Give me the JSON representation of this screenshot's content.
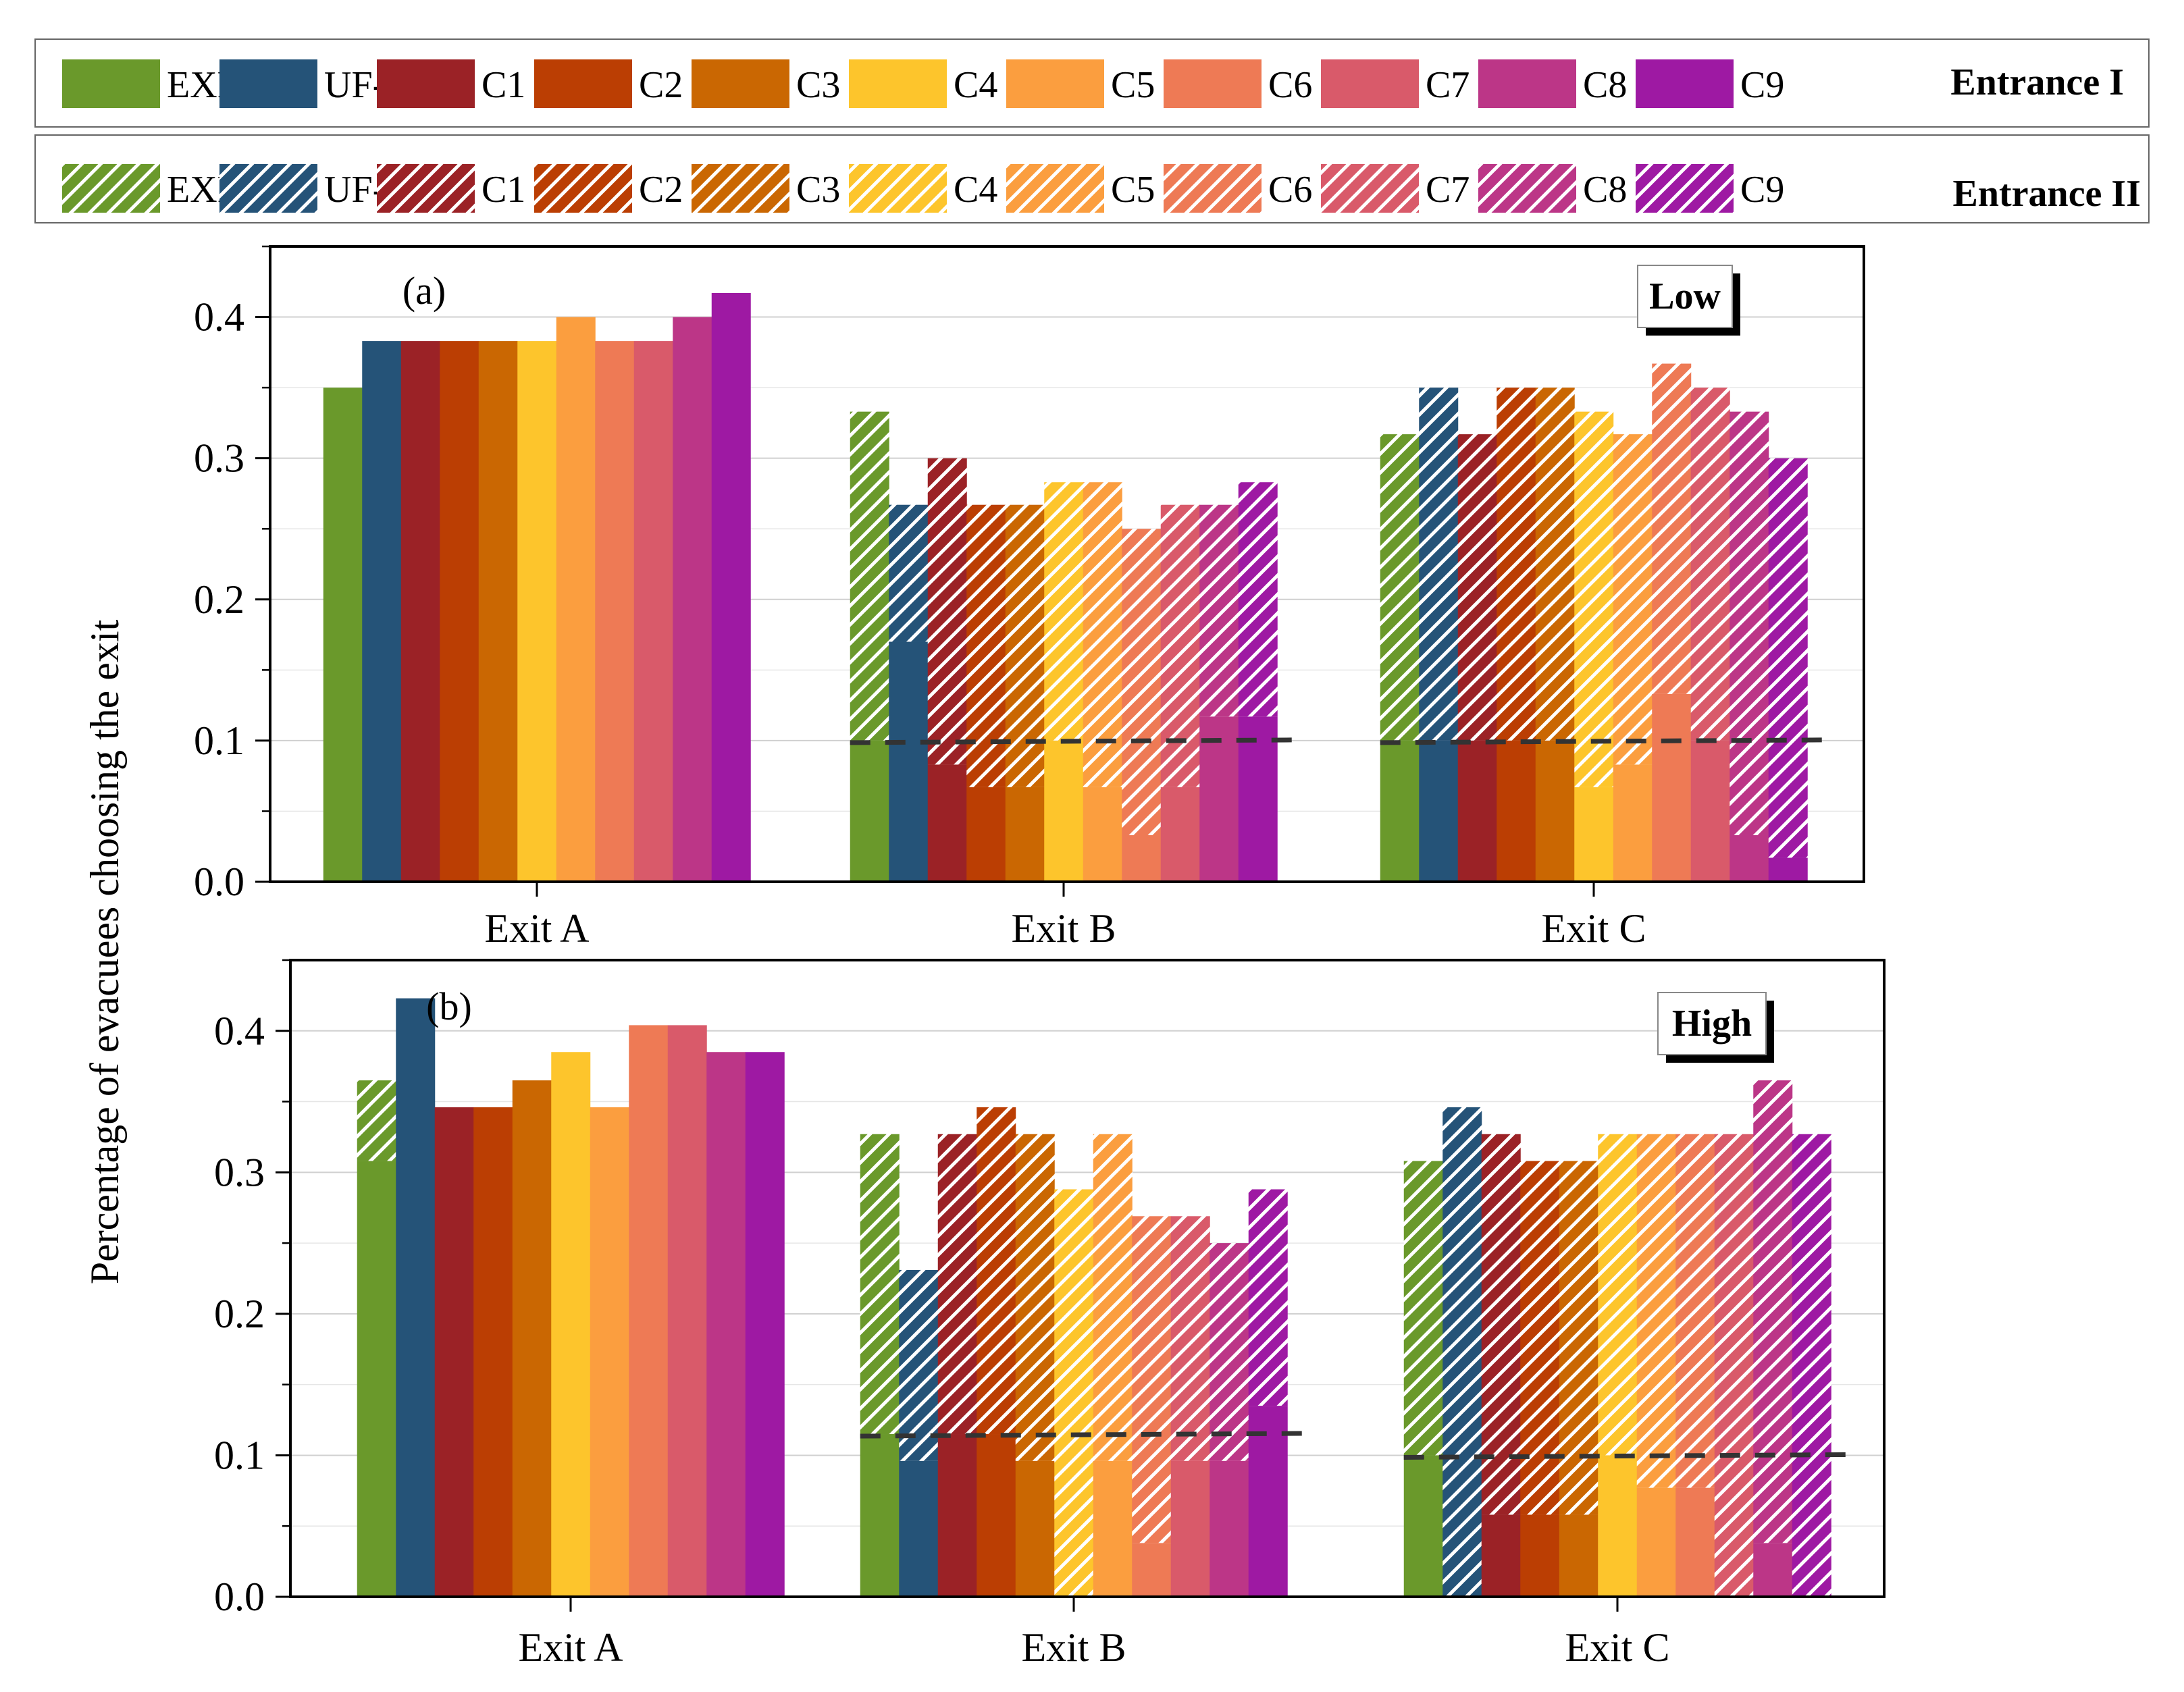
{
  "legend": {
    "rows": [
      {
        "label": "Entrance I",
        "hatched": false
      },
      {
        "label": "Entrance II",
        "hatched": true
      }
    ],
    "items": [
      {
        "name": "EXP",
        "color": "#6a992b"
      },
      {
        "name": "UF-SF",
        "color": "#255378"
      },
      {
        "name": "C1",
        "color": "#9b2226"
      },
      {
        "name": "C2",
        "color": "#bb3e03"
      },
      {
        "name": "C3",
        "color": "#ca6702"
      },
      {
        "name": "C4",
        "color": "#fdc52c"
      },
      {
        "name": "C5",
        "color": "#fb9e3f"
      },
      {
        "name": "C6",
        "color": "#ee7a55"
      },
      {
        "name": "C7",
        "color": "#d95a6a"
      },
      {
        "name": "C8",
        "color": "#bc3687"
      },
      {
        "name": "C9",
        "color": "#9e19a3"
      }
    ]
  },
  "y_axis_label": "Percentage of evacuees choosing the exit",
  "chart_data": [
    {
      "type": "bar",
      "panel_label": "(a)",
      "density_label": "Low",
      "categories": [
        "Exit A",
        "Exit B",
        "Exit C"
      ],
      "ylim": [
        0,
        0.45
      ],
      "yticks": [
        "0.0",
        "0.1",
        "0.2",
        "0.3",
        "0.4"
      ],
      "dashed_line": [
        0.1,
        0.1,
        0.1
      ],
      "series": [
        {
          "name": "EXP",
          "values": [
            0.35,
            0.333,
            0.317
          ],
          "split": [
            0.1,
            0.1
          ]
        },
        {
          "name": "UF-SF",
          "values": [
            0.383,
            0.267,
            0.35
          ],
          "split": [
            0.17,
            0.1
          ]
        },
        {
          "name": "C1",
          "values": [
            0.383,
            0.3,
            0.317
          ],
          "split": [
            0.083,
            0.1
          ]
        },
        {
          "name": "C2",
          "values": [
            0.383,
            0.267,
            0.35
          ],
          "split": [
            0.067,
            0.1
          ]
        },
        {
          "name": "C3",
          "values": [
            0.383,
            0.267,
            0.35
          ],
          "split": [
            0.067,
            0.1
          ]
        },
        {
          "name": "C4",
          "values": [
            0.383,
            0.283,
            0.333
          ],
          "split": [
            0.1,
            0.067
          ]
        },
        {
          "name": "C5",
          "values": [
            0.4,
            0.283,
            0.317
          ],
          "split": [
            0.067,
            0.083
          ]
        },
        {
          "name": "C6",
          "values": [
            0.383,
            0.25,
            0.367
          ],
          "split": [
            0.033,
            0.133
          ]
        },
        {
          "name": "C7",
          "values": [
            0.383,
            0.267,
            0.35
          ],
          "split": [
            0.067,
            0.1
          ]
        },
        {
          "name": "C8",
          "values": [
            0.4,
            0.267,
            0.333
          ],
          "split": [
            0.117,
            0.033
          ]
        },
        {
          "name": "C9",
          "values": [
            0.417,
            0.283,
            0.3
          ],
          "split": [
            0.117,
            0.017
          ]
        }
      ]
    },
    {
      "type": "bar",
      "panel_label": "(b)",
      "density_label": "High",
      "categories": [
        "Exit A",
        "Exit B",
        "Exit C"
      ],
      "ylim": [
        0,
        0.45
      ],
      "yticks": [
        "0.0",
        "0.1",
        "0.2",
        "0.3",
        "0.4"
      ],
      "dashed_line": [
        0.115,
        0.115,
        0.1
      ],
      "series": [
        {
          "name": "EXP",
          "values": [
            0.365,
            0.327,
            0.308
          ],
          "split": [
            0.115,
            0.1
          ],
          "a_split": 0.308
        },
        {
          "name": "UF-SF",
          "values": [
            0.423,
            0.231,
            0.346
          ],
          "split": [
            0.096,
            0.0
          ]
        },
        {
          "name": "C1",
          "values": [
            0.346,
            0.327,
            0.327
          ],
          "split": [
            0.115,
            0.058
          ]
        },
        {
          "name": "C2",
          "values": [
            0.346,
            0.346,
            0.308
          ],
          "split": [
            0.115,
            0.058
          ]
        },
        {
          "name": "C3",
          "values": [
            0.365,
            0.327,
            0.308
          ],
          "split": [
            0.096,
            0.058
          ]
        },
        {
          "name": "C4",
          "values": [
            0.385,
            0.288,
            0.327
          ],
          "split": [
            0.0,
            0.1
          ]
        },
        {
          "name": "C5",
          "values": [
            0.346,
            0.327,
            0.327
          ],
          "split": [
            0.096,
            0.077
          ]
        },
        {
          "name": "C6",
          "values": [
            0.404,
            0.269,
            0.327
          ],
          "split": [
            0.038,
            0.077
          ]
        },
        {
          "name": "C7",
          "values": [
            0.404,
            0.269,
            0.327
          ],
          "split": [
            0.096,
            0.0
          ]
        },
        {
          "name": "C8",
          "values": [
            0.385,
            0.25,
            0.365
          ],
          "split": [
            0.096,
            0.038
          ]
        },
        {
          "name": "C9",
          "values": [
            0.385,
            0.288,
            0.327
          ],
          "split": [
            0.135,
            0.0
          ]
        }
      ]
    }
  ]
}
